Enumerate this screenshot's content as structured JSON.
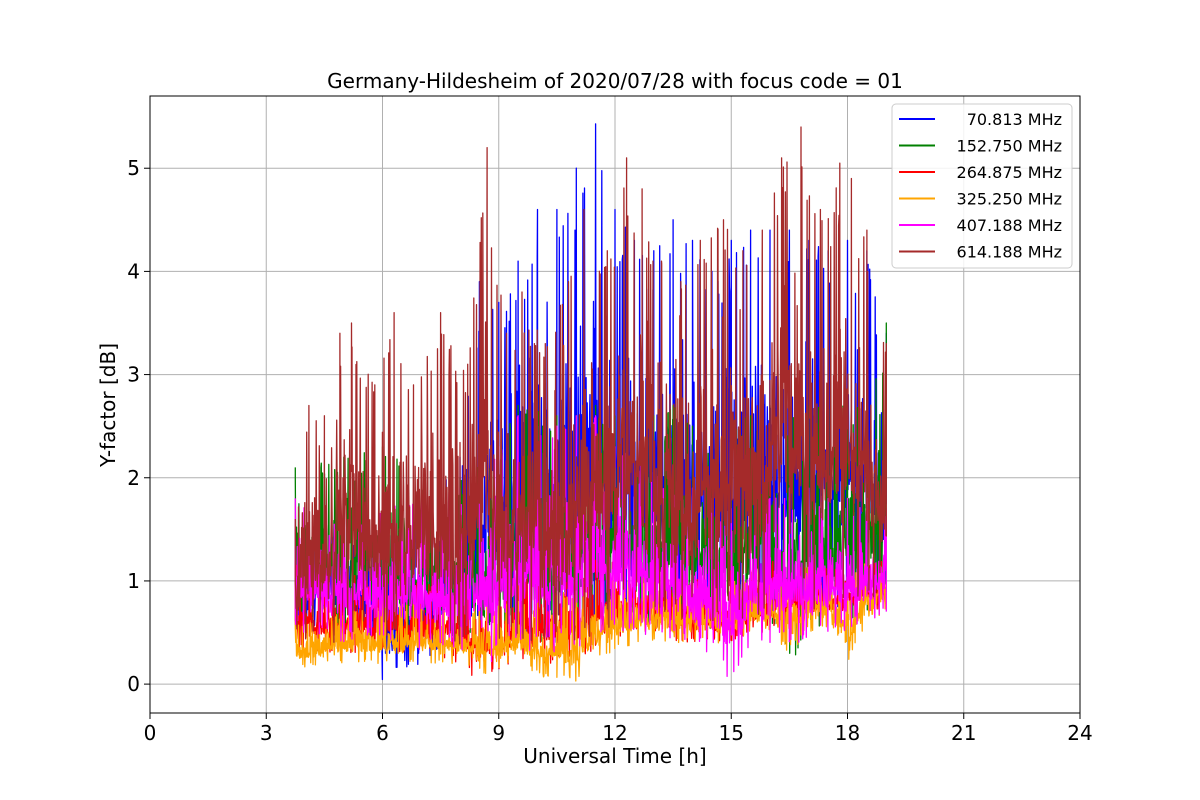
{
  "chart_data": {
    "type": "line",
    "title": "Germany-Hildesheim of 2020/07/28 with focus code = 01",
    "xlabel": "Universal Time [h]",
    "ylabel": "Y-factor [dB]",
    "xlim": [
      0,
      24
    ],
    "ylim": [
      -0.28,
      5.7
    ],
    "xticks": [
      0,
      3,
      6,
      9,
      12,
      15,
      18,
      21,
      24
    ],
    "yticks": [
      0,
      1,
      2,
      3,
      4,
      5
    ],
    "grid": true,
    "legend_position": "top-right",
    "series": [
      {
        "name": "70.813 MHz",
        "color": "#0000ff",
        "x": [
          3.75,
          5,
          6,
          7,
          8,
          8.5,
          9,
          9.5,
          10,
          10.5,
          11,
          11.5,
          12,
          12.5,
          13,
          13.5,
          14,
          14.5,
          15,
          15.5,
          16,
          16.5,
          17,
          17.5,
          18,
          18.5,
          19
        ],
        "min": [
          0.6,
          0.5,
          0.0,
          0.2,
          0.4,
          0.5,
          0.5,
          0.4,
          0.3,
          0.4,
          0.5,
          0.6,
          0.6,
          0.7,
          0.6,
          0.5,
          0.6,
          0.5,
          0.5,
          0.6,
          0.6,
          0.6,
          0.7,
          0.6,
          0.7,
          0.7,
          0.8
        ],
        "max": [
          1.5,
          1.6,
          1.6,
          1.7,
          2.2,
          3.9,
          3.7,
          4.1,
          4.6,
          4.6,
          5.0,
          5.43,
          4.6,
          4.3,
          4.2,
          4.5,
          4.3,
          4.0,
          4.3,
          4.4,
          4.4,
          4.4,
          4.3,
          4.2,
          4.3,
          4.2,
          3.4
        ]
      },
      {
        "name": "152.750 MHz",
        "color": "#008000",
        "x": [
          3.75,
          5,
          6,
          7,
          8,
          8.5,
          9,
          9.5,
          10,
          10.5,
          11,
          11.5,
          12,
          12.5,
          13,
          13.5,
          14,
          14.5,
          15,
          15.5,
          16,
          16.5,
          17,
          17.5,
          18,
          18.5,
          19
        ],
        "min": [
          0.6,
          0.5,
          0.4,
          0.4,
          0.4,
          0.3,
          0.0,
          0.4,
          0.4,
          0.4,
          0.5,
          0.6,
          0.6,
          0.5,
          0.5,
          0.6,
          0.6,
          0.5,
          0.5,
          0.6,
          0.6,
          0.05,
          0.5,
          0.5,
          0.6,
          0.7,
          0.8
        ],
        "max": [
          2.1,
          2.2,
          2.3,
          2.0,
          2.0,
          2.2,
          2.3,
          2.7,
          2.8,
          2.6,
          2.6,
          2.7,
          2.6,
          2.8,
          2.6,
          2.7,
          2.5,
          2.5,
          2.6,
          2.6,
          2.7,
          2.6,
          2.7,
          2.7,
          2.8,
          2.8,
          3.5
        ]
      },
      {
        "name": "264.875 MHz",
        "color": "#ff0000",
        "x": [
          3.75,
          5,
          6,
          7,
          8,
          8.5,
          9,
          9.5,
          10,
          10.5,
          11,
          11.5,
          12,
          12.5,
          13,
          13.5,
          14,
          14.5,
          15,
          15.5,
          16,
          16.5,
          17,
          17.5,
          18,
          18.5,
          19
        ],
        "min": [
          0.3,
          0.3,
          0.3,
          0.3,
          0.2,
          0.0,
          0.1,
          0.2,
          0.2,
          0.2,
          0.2,
          0.3,
          0.4,
          0.5,
          0.5,
          0.4,
          0.4,
          0.4,
          0.4,
          0.5,
          0.5,
          0.6,
          0.6,
          0.6,
          0.6,
          0.7,
          0.7
        ],
        "max": [
          1.2,
          1.1,
          1.0,
          1.0,
          1.0,
          1.0,
          1.0,
          1.1,
          1.1,
          1.1,
          1.1,
          1.2,
          1.3,
          1.3,
          1.2,
          1.2,
          1.1,
          1.1,
          1.1,
          1.1,
          1.2,
          1.2,
          1.2,
          1.2,
          1.2,
          1.2,
          1.2
        ]
      },
      {
        "name": "325.250 MHz",
        "color": "#ffa500",
        "x": [
          3.75,
          5,
          6,
          7,
          8,
          8.5,
          9,
          9.5,
          10,
          10.5,
          11,
          11.5,
          12,
          12.5,
          13,
          13.5,
          14,
          14.5,
          15,
          15.5,
          16,
          16.5,
          17,
          17.5,
          18,
          18.5,
          19
        ],
        "min": [
          0.15,
          0.2,
          0.2,
          0.2,
          0.2,
          0.1,
          0.1,
          0.2,
          0.1,
          0.0,
          0.0,
          0.2,
          0.3,
          0.4,
          0.4,
          0.4,
          0.4,
          0.4,
          0.4,
          0.5,
          0.5,
          0.3,
          0.5,
          0.5,
          0.2,
          0.6,
          0.7
        ],
        "max": [
          0.6,
          0.7,
          0.8,
          0.8,
          0.7,
          0.8,
          0.8,
          0.8,
          0.8,
          0.9,
          0.9,
          1.0,
          1.1,
          1.1,
          1.0,
          1.0,
          1.0,
          1.0,
          1.0,
          1.0,
          1.0,
          1.1,
          1.2,
          1.2,
          1.1,
          1.2,
          1.2
        ]
      },
      {
        "name": "407.188 MHz",
        "color": "#ff00ff",
        "x": [
          3.75,
          5,
          6,
          7,
          8,
          8.5,
          9,
          9.5,
          10,
          10.5,
          11,
          11.5,
          12,
          12.5,
          13,
          13.5,
          14,
          14.5,
          15,
          15.5,
          16,
          16.5,
          17,
          17.5,
          18,
          18.5,
          19
        ],
        "min": [
          0.5,
          0.4,
          0.4,
          0.3,
          0.3,
          0.2,
          0.2,
          0.3,
          0.3,
          0.3,
          0.3,
          0.4,
          0.5,
          0.5,
          0.4,
          0.4,
          0.3,
          0.3,
          0.0,
          0.4,
          0.4,
          0.4,
          0.4,
          0.5,
          0.5,
          0.6,
          0.7
        ],
        "max": [
          1.8,
          1.7,
          1.7,
          1.8,
          1.9,
          2.0,
          2.3,
          2.6,
          2.5,
          2.5,
          2.6,
          2.6,
          2.3,
          2.2,
          2.2,
          2.0,
          1.9,
          1.8,
          1.7,
          1.7,
          1.8,
          1.9,
          1.9,
          1.8,
          1.8,
          1.8,
          1.7
        ]
      },
      {
        "name": "614.188 MHz",
        "color": "#a52a2a",
        "x": [
          3.75,
          4.1,
          4.5,
          4.9,
          5.2,
          5.8,
          6.3,
          6.8,
          7.5,
          8.2,
          8.7,
          9.2,
          9.6,
          10.2,
          10.8,
          11.2,
          11.8,
          12.3,
          12.7,
          13.2,
          13.7,
          14.2,
          14.8,
          15.3,
          15.8,
          16.3,
          16.8,
          17.3,
          17.8,
          18.1,
          18.5,
          19
        ],
        "min": [
          0.5,
          0.4,
          0.4,
          0.4,
          0.4,
          0.5,
          0.4,
          0.4,
          0.3,
          0.4,
          0.3,
          0.3,
          0.4,
          0.4,
          0.3,
          0.4,
          0.5,
          0.6,
          0.6,
          0.6,
          0.5,
          0.6,
          0.6,
          0.5,
          0.6,
          0.7,
          0.7,
          0.7,
          0.7,
          0.8,
          0.8,
          0.9
        ],
        "max": [
          1.6,
          2.7,
          2.6,
          3.4,
          3.5,
          2.9,
          3.6,
          2.9,
          3.6,
          3.1,
          5.2,
          3.4,
          3.8,
          3.3,
          3.9,
          4.6,
          4.2,
          5.1,
          4.8,
          4.1,
          3.9,
          4.3,
          4.5,
          4.2,
          4.4,
          5.1,
          5.4,
          4.6,
          5.05,
          4.9,
          4.4,
          3.3
        ]
      }
    ]
  }
}
